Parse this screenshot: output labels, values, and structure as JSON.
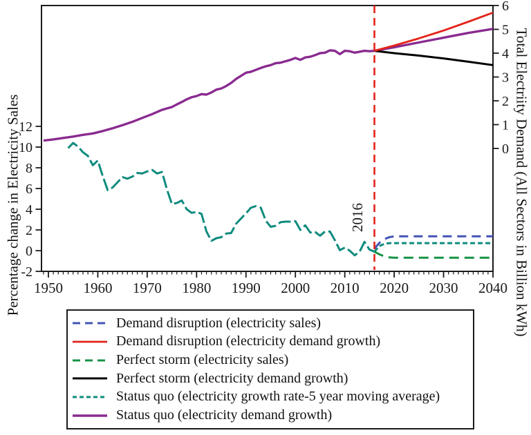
{
  "chart_data": {
    "type": "line",
    "title": "",
    "x_axis": {
      "label": "",
      "range": [
        1948.6,
        2040
      ],
      "major_ticks": [
        1950,
        1960,
        1970,
        1980,
        1990,
        2000,
        2010,
        2020,
        2030,
        2040
      ],
      "minor_tick_every_years": 1,
      "minor_tick_start": 1949,
      "minor_tick_end": 2040
    },
    "left_y_axis": {
      "label": "Percentage change in Electricity Sales",
      "ticks": [
        -2,
        0,
        2,
        4,
        6,
        8,
        10,
        12
      ],
      "range_at_ticks": [
        -2,
        12
      ]
    },
    "right_y_axis": {
      "label": "Total Electriity Demand (All Sectors in Billion kWh)",
      "ticks": [
        0,
        1,
        2,
        3,
        4,
        5,
        6
      ],
      "range": [
        0,
        6
      ]
    },
    "vline": {
      "x": 2016,
      "label": "2016",
      "color": "#E32219",
      "style": "dashed"
    },
    "grid": false,
    "legend_position": "bottom",
    "axis_color": "#1a1a1a",
    "series": [
      {
        "id": "status_quo_rate",
        "name": "Status quo (electricity growth rate-5 year moving average)",
        "axis": "left",
        "color": "#0F8B7E",
        "width": 3,
        "dash": "18 5",
        "split": {
          "year": 2016,
          "dash": "7 4"
        },
        "legend_dash": "6 4",
        "points": [
          [
            1954,
            9.9
          ],
          [
            1955,
            10.4
          ],
          [
            1956,
            10.05
          ],
          [
            1957,
            9.5
          ],
          [
            1958,
            9.15
          ],
          [
            1959,
            8.25
          ],
          [
            1960,
            8.7
          ],
          [
            1961,
            7.2
          ],
          [
            1962,
            5.85
          ],
          [
            1963,
            6.1
          ],
          [
            1964,
            6.6
          ],
          [
            1965,
            7.1
          ],
          [
            1966,
            6.95
          ],
          [
            1967,
            7.15
          ],
          [
            1968,
            7.5
          ],
          [
            1969,
            7.45
          ],
          [
            1970,
            7.65
          ],
          [
            1971,
            7.8
          ],
          [
            1972,
            7.45
          ],
          [
            1973,
            7.6
          ],
          [
            1974,
            5.9
          ],
          [
            1975,
            4.5
          ],
          [
            1976,
            4.6
          ],
          [
            1977,
            4.85
          ],
          [
            1978,
            4.0
          ],
          [
            1979,
            3.65
          ],
          [
            1980,
            3.75
          ],
          [
            1981,
            3.55
          ],
          [
            1982,
            1.85
          ],
          [
            1983,
            0.95
          ],
          [
            1984,
            1.2
          ],
          [
            1985,
            1.3
          ],
          [
            1986,
            1.65
          ],
          [
            1987,
            1.7
          ],
          [
            1988,
            2.6
          ],
          [
            1989,
            3.1
          ],
          [
            1990,
            3.6
          ],
          [
            1991,
            4.15
          ],
          [
            1992,
            4.3
          ],
          [
            1993,
            4.15
          ],
          [
            1994,
            2.9
          ],
          [
            1995,
            2.3
          ],
          [
            1996,
            2.4
          ],
          [
            1997,
            2.75
          ],
          [
            1998,
            2.8
          ],
          [
            1999,
            2.8
          ],
          [
            2000,
            2.85
          ],
          [
            2001,
            2.0
          ],
          [
            2002,
            2.45
          ],
          [
            2003,
            1.75
          ],
          [
            2004,
            1.8
          ],
          [
            2005,
            1.45
          ],
          [
            2006,
            1.85
          ],
          [
            2007,
            1.85
          ],
          [
            2008,
            1.0
          ],
          [
            2009,
            0.05
          ],
          [
            2010,
            0.3
          ],
          [
            2011,
            0.0
          ],
          [
            2012,
            -0.45
          ],
          [
            2013,
            -0.1
          ],
          [
            2014,
            0.85
          ],
          [
            2015,
            0.1
          ],
          [
            2016,
            -0.1
          ],
          [
            2017,
            0.45
          ],
          [
            2018,
            0.65
          ],
          [
            2019,
            0.73
          ],
          [
            2040,
            0.73
          ]
        ]
      },
      {
        "id": "status_quo_demand",
        "name": "Status quo (electricity demand growth)",
        "axis": "right",
        "color": "#8A2B90",
        "width": 3.4,
        "dash": null,
        "points": [
          [
            1949,
            0.33
          ],
          [
            1951,
            0.38
          ],
          [
            1953,
            0.44
          ],
          [
            1955,
            0.5
          ],
          [
            1957,
            0.57
          ],
          [
            1959,
            0.63
          ],
          [
            1961,
            0.73
          ],
          [
            1963,
            0.85
          ],
          [
            1965,
            0.98
          ],
          [
            1967,
            1.12
          ],
          [
            1969,
            1.28
          ],
          [
            1971,
            1.44
          ],
          [
            1972,
            1.53
          ],
          [
            1973,
            1.62
          ],
          [
            1974,
            1.68
          ],
          [
            1975,
            1.74
          ],
          [
            1976,
            1.85
          ],
          [
            1977,
            1.95
          ],
          [
            1978,
            2.06
          ],
          [
            1979,
            2.15
          ],
          [
            1980,
            2.2
          ],
          [
            1981,
            2.28
          ],
          [
            1982,
            2.26
          ],
          [
            1983,
            2.35
          ],
          [
            1984,
            2.47
          ],
          [
            1985,
            2.52
          ],
          [
            1986,
            2.62
          ],
          [
            1987,
            2.75
          ],
          [
            1988,
            2.92
          ],
          [
            1989,
            3.05
          ],
          [
            1990,
            3.18
          ],
          [
            1991,
            3.22
          ],
          [
            1992,
            3.3
          ],
          [
            1993,
            3.38
          ],
          [
            1994,
            3.45
          ],
          [
            1995,
            3.5
          ],
          [
            1996,
            3.58
          ],
          [
            1997,
            3.6
          ],
          [
            1998,
            3.66
          ],
          [
            1999,
            3.72
          ],
          [
            2000,
            3.8
          ],
          [
            2001,
            3.72
          ],
          [
            2002,
            3.82
          ],
          [
            2003,
            3.85
          ],
          [
            2004,
            3.92
          ],
          [
            2005,
            4.0
          ],
          [
            2006,
            4.02
          ],
          [
            2007,
            4.12
          ],
          [
            2008,
            4.1
          ],
          [
            2009,
            3.96
          ],
          [
            2010,
            4.1
          ],
          [
            2011,
            4.08
          ],
          [
            2012,
            4.02
          ],
          [
            2013,
            4.06
          ],
          [
            2014,
            4.1
          ],
          [
            2015,
            4.08
          ],
          [
            2016,
            4.1
          ],
          [
            2020,
            4.25
          ],
          [
            2025,
            4.45
          ],
          [
            2030,
            4.65
          ],
          [
            2035,
            4.85
          ],
          [
            2040,
            5.02
          ]
        ]
      },
      {
        "id": "perfect_storm_demand",
        "name": "Perfect storm (electricity demand growth)",
        "axis": "right",
        "color": "#000000",
        "width": 3,
        "dash": null,
        "points": [
          [
            2016,
            4.1
          ],
          [
            2020,
            4.0
          ],
          [
            2025,
            3.9
          ],
          [
            2030,
            3.78
          ],
          [
            2035,
            3.64
          ],
          [
            2040,
            3.5
          ]
        ]
      },
      {
        "id": "demand_disruption_demand",
        "name": "Demand disruption (electricity demand growth)",
        "axis": "right",
        "color": "#E32219",
        "width": 2.8,
        "dash": null,
        "points": [
          [
            2016,
            4.1
          ],
          [
            2020,
            4.32
          ],
          [
            2025,
            4.62
          ],
          [
            2030,
            4.95
          ],
          [
            2035,
            5.32
          ],
          [
            2040,
            5.7
          ]
        ]
      },
      {
        "id": "demand_disruption_sales",
        "name": "Demand disruption (electricity sales)",
        "axis": "left",
        "color": "#4254B5",
        "width": 3,
        "dash": "13 8",
        "legend_dash": "11 7",
        "points": [
          [
            2016,
            0.2
          ],
          [
            2017,
            0.75
          ],
          [
            2018,
            1.1
          ],
          [
            2019,
            1.3
          ],
          [
            2020,
            1.38
          ],
          [
            2040,
            1.38
          ]
        ]
      },
      {
        "id": "perfect_storm_sales",
        "name": "Perfect storm (electricity sales)",
        "axis": "left",
        "color": "#169245",
        "width": 3,
        "dash": "14 8",
        "legend_dash": "11 7",
        "points": [
          [
            2016,
            -0.1
          ],
          [
            2017,
            -0.35
          ],
          [
            2018,
            -0.55
          ],
          [
            2019,
            -0.65
          ],
          [
            2020,
            -0.68
          ],
          [
            2040,
            -0.68
          ]
        ]
      }
    ],
    "legend": {
      "entries": [
        {
          "series": "demand_disruption_sales",
          "label": "Demand disruption (electricity sales)"
        },
        {
          "series": "demand_disruption_demand",
          "label": "Demand disruption (electricity demand growth)"
        },
        {
          "series": "perfect_storm_sales",
          "label": "Perfect storm (electricity sales)"
        },
        {
          "series": "perfect_storm_demand",
          "label": "Perfect storm (electricity demand growth)"
        },
        {
          "series": "status_quo_rate",
          "label": "Status quo (electricity growth rate-5 year moving average)"
        },
        {
          "series": "status_quo_demand",
          "label": "Status quo (electricity demand growth)"
        }
      ]
    }
  }
}
